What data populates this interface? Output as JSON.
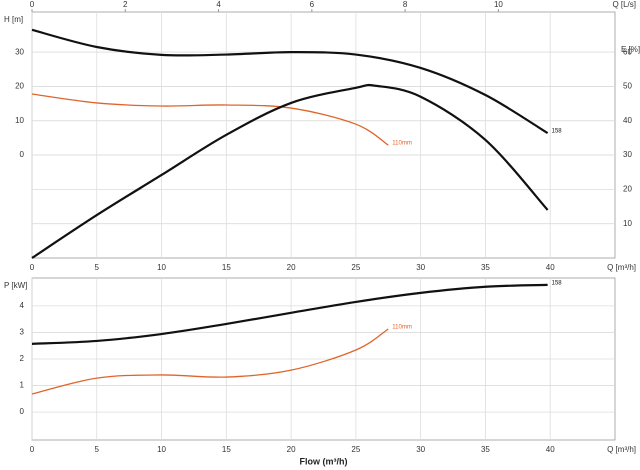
{
  "chart_data": [
    {
      "type": "line",
      "xlabel": "Q [m³/h]",
      "x2label": "Q [L/s]",
      "ylabel": "H [m]",
      "y2label": "E [%]",
      "xlim": [
        0,
        45
      ],
      "xticks": [
        0,
        5,
        10,
        15,
        20,
        25,
        30,
        35,
        40
      ],
      "x2lim": [
        0,
        12.5
      ],
      "x2ticks": [
        0,
        2,
        4,
        6,
        8,
        10
      ],
      "ylim": [
        -30,
        41.7
      ],
      "yticks": [
        0,
        10,
        20,
        30
      ],
      "y2lim": [
        0,
        71.7
      ],
      "y2ticks": [
        10,
        20,
        30,
        40,
        50,
        60
      ],
      "grid": true,
      "series": [
        {
          "name": "158",
          "color": "#111111",
          "x": [
            0,
            5,
            10,
            15,
            20,
            25,
            30,
            35,
            39.8
          ],
          "values": [
            36.5,
            31.5,
            29.2,
            29.3,
            30,
            29.3,
            25.4,
            17.5,
            6.4
          ]
        },
        {
          "name": "110mm",
          "color": "#e0642a",
          "x": [
            0,
            5,
            10,
            15,
            20,
            25,
            27.5
          ],
          "values": [
            17.8,
            15.2,
            14.3,
            14.6,
            13.7,
            9,
            2.9
          ]
        },
        {
          "color": "#111111",
          "axis": "y2",
          "x": [
            0,
            5,
            10,
            15,
            20,
            25,
            26.5,
            30,
            35,
            39.8
          ],
          "values": [
            0,
            12.5,
            24.2,
            35.9,
            45.2,
            49.6,
            50.2,
            47,
            34.4,
            14
          ]
        }
      ]
    },
    {
      "type": "line",
      "xlabel": "Q [m³/h]",
      "ylabel": "P [kW]",
      "xaxis_title": "Flow (m³/h)",
      "xlim": [
        0,
        45
      ],
      "xticks": [
        0,
        5,
        10,
        15,
        20,
        25,
        30,
        35,
        40
      ],
      "ylim": [
        -1.05,
        5.05
      ],
      "yticks": [
        0,
        1,
        2,
        3,
        4
      ],
      "grid": true,
      "series": [
        {
          "name": "158",
          "color": "#111111",
          "x": [
            0,
            5,
            10,
            15,
            20,
            25,
            30,
            35,
            39.8
          ],
          "values": [
            2.57,
            2.68,
            2.94,
            3.32,
            3.74,
            4.15,
            4.49,
            4.72,
            4.79
          ]
        },
        {
          "name": "110mm",
          "color": "#e0642a",
          "x": [
            0,
            5,
            10,
            15,
            20,
            25,
            27.5
          ],
          "values": [
            0.68,
            1.28,
            1.4,
            1.32,
            1.58,
            2.34,
            3.13
          ]
        }
      ]
    }
  ]
}
